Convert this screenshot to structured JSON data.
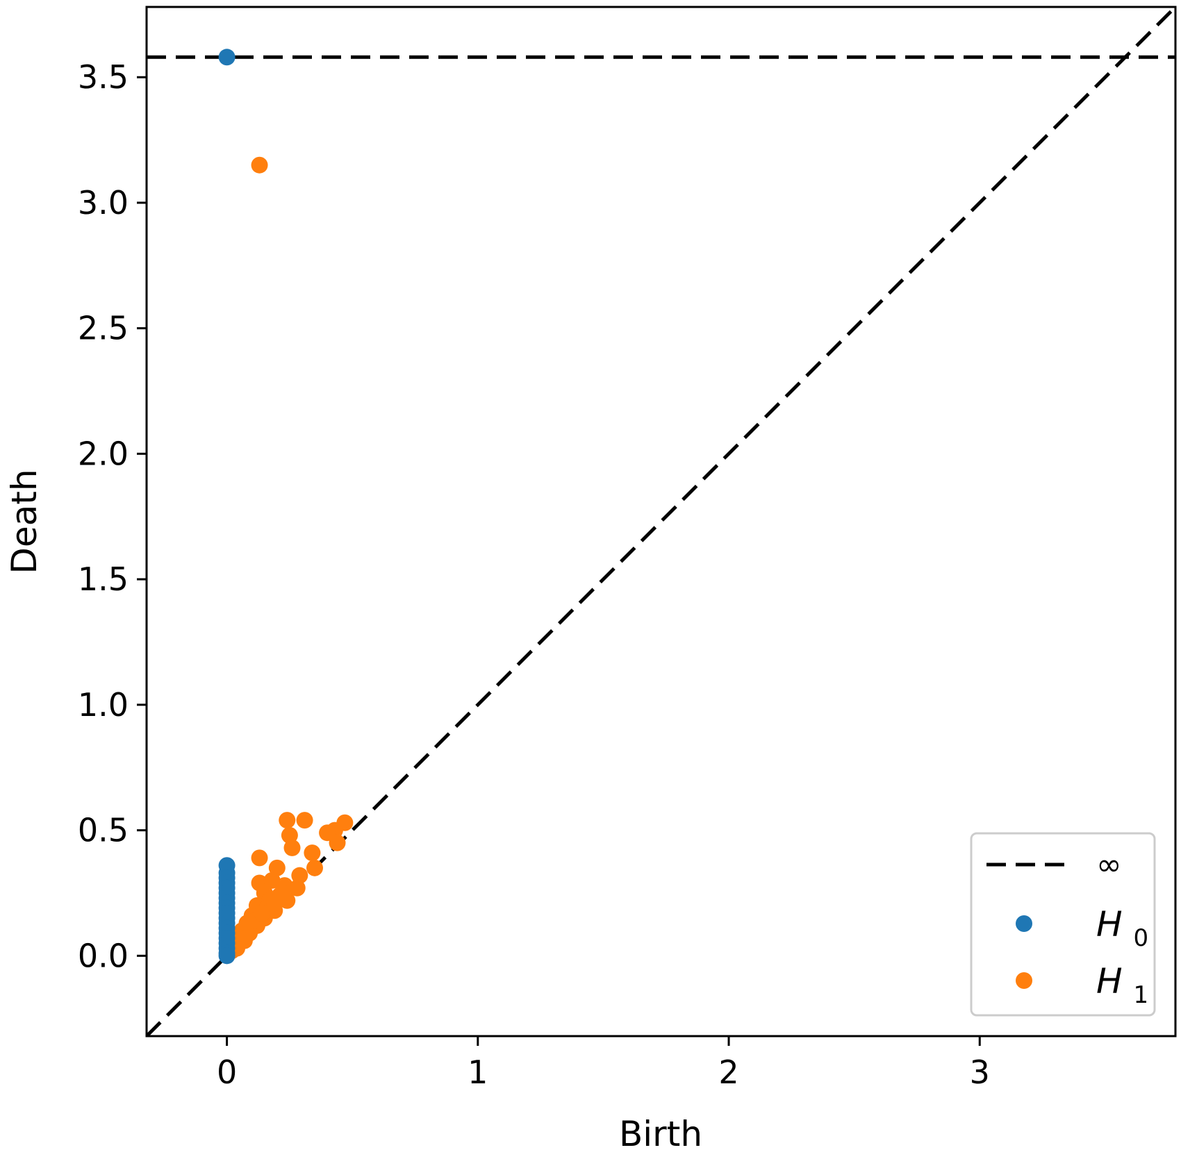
{
  "chart_data": {
    "type": "scatter",
    "xlabel": "Birth",
    "ylabel": "Death",
    "xlim": [
      -0.32,
      3.78
    ],
    "ylim": [
      -0.32,
      3.78
    ],
    "x_ticks": [
      0,
      1,
      2,
      3
    ],
    "x_tick_labels": [
      "0",
      "1",
      "2",
      "3"
    ],
    "y_ticks": [
      0.0,
      0.5,
      1.0,
      1.5,
      2.0,
      2.5,
      3.0,
      3.5
    ],
    "y_tick_labels": [
      "0.0",
      "0.5",
      "1.0",
      "1.5",
      "2.0",
      "2.5",
      "3.0",
      "3.5"
    ],
    "infinity_line": {
      "y": 3.58,
      "style": "dashed",
      "color": "#000000"
    },
    "diagonal": {
      "style": "dashed",
      "color": "#000000"
    },
    "grid": false,
    "legend": {
      "placement": "bottom-right",
      "entries": [
        {
          "key": "inf",
          "label": "∞"
        },
        {
          "key": "h0",
          "label": "H",
          "sub": "0"
        },
        {
          "key": "h1",
          "label": "H",
          "sub": "1"
        }
      ]
    },
    "series": [
      {
        "name": "H0",
        "color": "#1f77b4",
        "points": [
          [
            0,
            3.58
          ],
          [
            0,
            0.36
          ],
          [
            0,
            0.33
          ],
          [
            0,
            0.31
          ],
          [
            0,
            0.29
          ],
          [
            0,
            0.27
          ],
          [
            0,
            0.25
          ],
          [
            0,
            0.23
          ],
          [
            0,
            0.21
          ],
          [
            0,
            0.19
          ],
          [
            0,
            0.17
          ],
          [
            0,
            0.15
          ],
          [
            0,
            0.13
          ],
          [
            0,
            0.11
          ],
          [
            0,
            0.09
          ],
          [
            0,
            0.07
          ],
          [
            0,
            0.05
          ],
          [
            0,
            0.03
          ],
          [
            0,
            0.01
          ],
          [
            0,
            0.0
          ]
        ]
      },
      {
        "name": "H1",
        "color": "#ff7f0e",
        "points": [
          [
            0.13,
            3.15
          ],
          [
            0.24,
            0.54
          ],
          [
            0.31,
            0.54
          ],
          [
            0.25,
            0.48
          ],
          [
            0.26,
            0.43
          ],
          [
            0.47,
            0.53
          ],
          [
            0.43,
            0.5
          ],
          [
            0.4,
            0.49
          ],
          [
            0.44,
            0.45
          ],
          [
            0.13,
            0.39
          ],
          [
            0.34,
            0.41
          ],
          [
            0.2,
            0.35
          ],
          [
            0.35,
            0.35
          ],
          [
            0.29,
            0.32
          ],
          [
            0.13,
            0.29
          ],
          [
            0.18,
            0.3
          ],
          [
            0.23,
            0.28
          ],
          [
            0.28,
            0.27
          ],
          [
            0.15,
            0.25
          ],
          [
            0.21,
            0.24
          ],
          [
            0.17,
            0.22
          ],
          [
            0.24,
            0.22
          ],
          [
            0.12,
            0.2
          ],
          [
            0.19,
            0.18
          ],
          [
            0.1,
            0.16
          ],
          [
            0.15,
            0.15
          ],
          [
            0.08,
            0.13
          ],
          [
            0.12,
            0.12
          ],
          [
            0.06,
            0.1
          ],
          [
            0.09,
            0.09
          ],
          [
            0.05,
            0.07
          ],
          [
            0.07,
            0.06
          ],
          [
            0.03,
            0.05
          ],
          [
            0.04,
            0.03
          ],
          [
            0.02,
            0.02
          ],
          [
            0.11,
            0.14
          ],
          [
            0.16,
            0.19
          ],
          [
            0.22,
            0.25
          ],
          [
            0.14,
            0.17
          ],
          [
            0.19,
            0.21
          ]
        ]
      }
    ]
  }
}
